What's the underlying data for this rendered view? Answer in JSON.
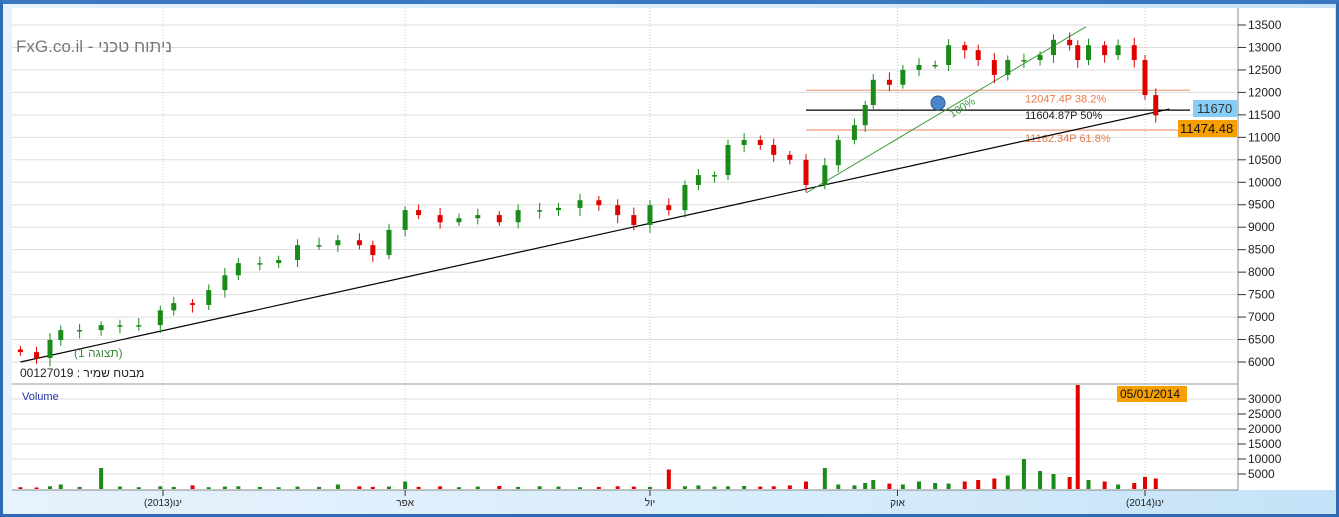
{
  "header": {
    "watermark": "FxG.co.il - ניתוח טכני",
    "security_label": "מבטח שמיר : 00127019",
    "zoom_label": "(תצוגה 1)"
  },
  "volume_panel": {
    "title": "Volume"
  },
  "colors": {
    "up": "#1a8a1a",
    "down": "#e00000",
    "fib": "#f0a58a",
    "fib_text": "#e8794a",
    "trend": "#000000",
    "swing": "#3a9a3a",
    "last_price_bg": "#f5a000",
    "cursor_price_bg": "#86cdf5"
  },
  "readouts": {
    "cursor_price": "11670",
    "last_price": "11474.48",
    "cursor_date": "05/01/2014"
  },
  "chart_data": {
    "type": "candlestick",
    "title": "",
    "y_ticks": [
      6000,
      6500,
      7000,
      7500,
      8000,
      8500,
      9000,
      9500,
      10000,
      10500,
      11000,
      11500,
      12000,
      12500,
      13000,
      13500
    ],
    "ylim": [
      5750,
      13700
    ],
    "x_ticks": [
      {
        "date": "2013-01-01",
        "label": "ינו(2013)"
      },
      {
        "date": "2013-04-01",
        "label": "אפר"
      },
      {
        "date": "2013-07-01",
        "label": "יול"
      },
      {
        "date": "2013-10-01",
        "label": "אוק"
      },
      {
        "date": "2014-01-01",
        "label": "ינו(2014)"
      }
    ],
    "xlim": [
      "2012-11-06",
      "2014-01-15"
    ],
    "grid": true,
    "points": [
      [
        "2012-11-09",
        6220
      ],
      [
        "2012-11-15",
        6090
      ],
      [
        "2012-11-20",
        6490
      ],
      [
        "2012-11-24",
        6710
      ],
      [
        "2012-12-01",
        6710
      ],
      [
        "2012-12-09",
        6820
      ],
      [
        "2012-12-16",
        6820
      ],
      [
        "2012-12-23",
        6820
      ],
      [
        "2012-12-31",
        7150
      ],
      [
        "2013-01-05",
        7310
      ],
      [
        "2013-01-12",
        7270
      ],
      [
        "2013-01-18",
        7600
      ],
      [
        "2013-01-24",
        7930
      ],
      [
        "2013-01-29",
        8200
      ],
      [
        "2013-02-06",
        8200
      ],
      [
        "2013-02-13",
        8270
      ],
      [
        "2013-02-20",
        8600
      ],
      [
        "2013-02-28",
        8600
      ],
      [
        "2013-03-07",
        8710
      ],
      [
        "2013-03-15",
        8600
      ],
      [
        "2013-03-20",
        8380
      ],
      [
        "2013-03-26",
        8940
      ],
      [
        "2013-04-01",
        9380
      ],
      [
        "2013-04-06",
        9270
      ],
      [
        "2013-04-14",
        9110
      ],
      [
        "2013-04-21",
        9200
      ],
      [
        "2013-04-28",
        9270
      ],
      [
        "2013-05-06",
        9110
      ],
      [
        "2013-05-13",
        9380
      ],
      [
        "2013-05-21",
        9380
      ],
      [
        "2013-05-28",
        9430
      ],
      [
        "2013-06-05",
        9600
      ],
      [
        "2013-06-12",
        9490
      ],
      [
        "2013-06-19",
        9270
      ],
      [
        "2013-06-25",
        9050
      ],
      [
        "2013-07-01",
        9490
      ],
      [
        "2013-07-08",
        9380
      ],
      [
        "2013-07-14",
        9940
      ],
      [
        "2013-07-19",
        10160
      ],
      [
        "2013-07-25",
        10160
      ],
      [
        "2013-07-30",
        10830
      ],
      [
        "2013-08-05",
        10940
      ],
      [
        "2013-08-11",
        10830
      ],
      [
        "2013-08-16",
        10610
      ],
      [
        "2013-08-22",
        10500
      ],
      [
        "2013-08-28",
        9940
      ],
      [
        "2013-09-04",
        10380
      ],
      [
        "2013-09-09",
        10940
      ],
      [
        "2013-09-15",
        11270
      ],
      [
        "2013-09-19",
        11720
      ],
      [
        "2013-09-22",
        12280
      ],
      [
        "2013-09-28",
        12170
      ],
      [
        "2013-10-03",
        12500
      ],
      [
        "2013-10-09",
        12610
      ],
      [
        "2013-10-15",
        12610
      ],
      [
        "2013-10-20",
        13050
      ],
      [
        "2013-10-26",
        12940
      ],
      [
        "2013-10-31",
        12720
      ],
      [
        "2013-11-06",
        12390
      ],
      [
        "2013-11-11",
        12720
      ],
      [
        "2013-11-17",
        12720
      ],
      [
        "2013-11-23",
        12830
      ],
      [
        "2013-11-28",
        13170
      ],
      [
        "2013-12-04",
        13050
      ],
      [
        "2013-12-07",
        12720
      ],
      [
        "2013-12-11",
        13050
      ],
      [
        "2013-12-17",
        12830
      ],
      [
        "2013-12-22",
        13050
      ],
      [
        "2013-12-28",
        12720
      ],
      [
        "2014-01-01",
        11940
      ],
      [
        "2014-01-05",
        11490
      ]
    ],
    "volume": {
      "y_ticks": [
        5000,
        10000,
        15000,
        20000,
        25000,
        30000
      ],
      "ylim": [
        0,
        35000
      ],
      "values": [
        600,
        500,
        900,
        1500,
        700,
        7000,
        800,
        600,
        900,
        700,
        1200,
        600,
        800,
        900,
        700,
        600,
        800,
        700,
        1500,
        900,
        700,
        800,
        2500,
        700,
        900,
        600,
        800,
        1000,
        700,
        900,
        800,
        600,
        700,
        900,
        800,
        700,
        6500,
        900,
        1200,
        800,
        900,
        1000,
        800,
        900,
        1200,
        2500,
        7000,
        1500,
        1200,
        2000,
        3000,
        1800,
        1500,
        2500,
        2000,
        1800,
        2500,
        3000,
        3500,
        4500,
        10000,
        6000,
        5000,
        4000,
        35000,
        3000,
        2500,
        1500,
        2000,
        4000,
        3500
      ]
    },
    "annotations": {
      "trendline": [
        [
          "2012-11-09",
          6000
        ],
        [
          "2014-01-10",
          11630
        ]
      ],
      "swing_line": [
        [
          "2013-08-28",
          9760
        ],
        [
          "2013-12-10",
          13460
        ]
      ],
      "swing_label": "100%",
      "fib_levels": [
        {
          "value": 12047.4,
          "label": "12047.4P  38.2%"
        },
        {
          "value": 11604.87,
          "label": "11604.87P  50%",
          "color": "#000000"
        },
        {
          "value": 11162.34,
          "label": "11162.34P  61.8%"
        }
      ]
    }
  }
}
